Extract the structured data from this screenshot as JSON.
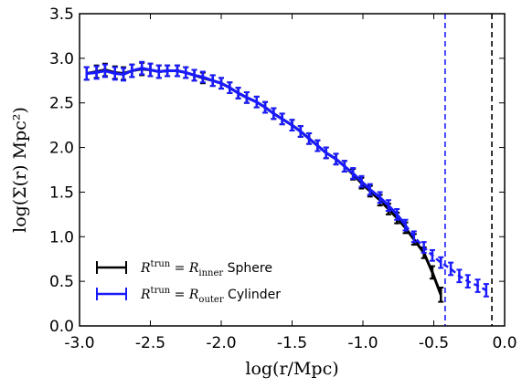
{
  "chart_data": {
    "type": "line",
    "xlabel": "log(r/Mpc)",
    "ylabel": "log(Σ(r) Mpc²)",
    "xlim": [
      -3.0,
      0.0
    ],
    "ylim": [
      0.0,
      3.5
    ],
    "xticks": [
      -3.0,
      -2.5,
      -2.0,
      -1.5,
      -1.0,
      -0.5,
      0.0
    ],
    "xtick_labels": [
      "-3.0",
      "-2.5",
      "-2.0",
      "-1.5",
      "-1.0",
      "-0.5",
      "0.0"
    ],
    "yticks": [
      0.0,
      0.5,
      1.0,
      1.5,
      2.0,
      2.5,
      3.0,
      3.5
    ],
    "ytick_labels": [
      "0.0",
      "0.5",
      "1.0",
      "1.5",
      "2.0",
      "2.5",
      "3.0",
      "3.5"
    ],
    "grid": false,
    "legend_position": "lower-left",
    "vertical_lines": [
      {
        "x": -0.42,
        "color": "#1a1aff",
        "style": "dashed"
      },
      {
        "x": -0.09,
        "color": "#000000",
        "style": "dashed"
      }
    ],
    "series": [
      {
        "legend_math": "R^trun = R_inner",
        "legend_lhs": "R",
        "legend_sup": "trun",
        "legend_eq": " = ",
        "legend_rhs": "R",
        "legend_sub": "inner",
        "legend_tail": " Sphere",
        "color": "#000000",
        "x": [
          -2.95,
          -2.88,
          -2.82,
          -2.75,
          -2.69,
          -2.63,
          -2.56,
          -2.5,
          -2.44,
          -2.38,
          -2.31,
          -2.25,
          -2.19,
          -2.13,
          -2.06,
          -2.0,
          -1.94,
          -1.88,
          -1.82,
          -1.75,
          -1.69,
          -1.63,
          -1.57,
          -1.5,
          -1.44,
          -1.38,
          -1.32,
          -1.26,
          -1.19,
          -1.13,
          -1.07,
          -1.01,
          -0.95,
          -0.88,
          -0.82,
          -0.76,
          -0.7,
          -0.64,
          -0.57,
          -0.51,
          -0.45
        ],
        "y": [
          2.83,
          2.85,
          2.87,
          2.84,
          2.83,
          2.86,
          2.88,
          2.87,
          2.85,
          2.86,
          2.86,
          2.84,
          2.81,
          2.78,
          2.75,
          2.72,
          2.67,
          2.61,
          2.56,
          2.51,
          2.45,
          2.38,
          2.32,
          2.25,
          2.18,
          2.1,
          2.02,
          1.94,
          1.87,
          1.79,
          1.7,
          1.6,
          1.51,
          1.41,
          1.31,
          1.21,
          1.1,
          0.97,
          0.82,
          0.6,
          0.35
        ],
        "yerr": [
          0.07,
          0.07,
          0.07,
          0.07,
          0.07,
          0.07,
          0.07,
          0.07,
          0.07,
          0.06,
          0.06,
          0.06,
          0.06,
          0.06,
          0.06,
          0.06,
          0.06,
          0.06,
          0.06,
          0.06,
          0.06,
          0.06,
          0.06,
          0.06,
          0.06,
          0.06,
          0.06,
          0.06,
          0.06,
          0.06,
          0.06,
          0.06,
          0.06,
          0.06,
          0.06,
          0.06,
          0.06,
          0.06,
          0.06,
          0.07,
          0.08
        ]
      },
      {
        "legend_math": "R^trun = R_outer",
        "legend_lhs": "R",
        "legend_sup": "trun",
        "legend_eq": " = ",
        "legend_rhs": "R",
        "legend_sub": "outer",
        "legend_tail": " Cylinder",
        "color": "#1a1aff",
        "x": [
          -2.95,
          -2.88,
          -2.82,
          -2.75,
          -2.69,
          -2.63,
          -2.56,
          -2.5,
          -2.44,
          -2.38,
          -2.31,
          -2.25,
          -2.19,
          -2.13,
          -2.06,
          -2.0,
          -1.94,
          -1.88,
          -1.82,
          -1.75,
          -1.69,
          -1.63,
          -1.57,
          -1.5,
          -1.44,
          -1.38,
          -1.32,
          -1.26,
          -1.19,
          -1.13,
          -1.07,
          -1.01,
          -0.95,
          -0.88,
          -0.82,
          -0.76,
          -0.7,
          -0.64,
          -0.57,
          -0.51,
          -0.45,
          -0.38,
          -0.32,
          -0.26,
          -0.19,
          -0.13
        ],
        "y": [
          2.83,
          2.84,
          2.86,
          2.83,
          2.82,
          2.86,
          2.89,
          2.87,
          2.85,
          2.86,
          2.86,
          2.84,
          2.81,
          2.79,
          2.75,
          2.72,
          2.67,
          2.61,
          2.56,
          2.51,
          2.45,
          2.38,
          2.32,
          2.25,
          2.18,
          2.1,
          2.02,
          1.94,
          1.87,
          1.79,
          1.71,
          1.62,
          1.53,
          1.44,
          1.35,
          1.25,
          1.13,
          1.0,
          0.88,
          0.79,
          0.71,
          0.64,
          0.56,
          0.5,
          0.45,
          0.4
        ],
        "yerr": [
          0.07,
          0.07,
          0.07,
          0.07,
          0.07,
          0.07,
          0.07,
          0.07,
          0.07,
          0.06,
          0.06,
          0.06,
          0.06,
          0.06,
          0.06,
          0.06,
          0.06,
          0.06,
          0.06,
          0.06,
          0.06,
          0.06,
          0.06,
          0.06,
          0.06,
          0.06,
          0.06,
          0.06,
          0.06,
          0.06,
          0.06,
          0.06,
          0.06,
          0.06,
          0.06,
          0.06,
          0.06,
          0.06,
          0.06,
          0.06,
          0.06,
          0.07,
          0.07,
          0.07,
          0.07,
          0.07
        ],
        "solid_until_x": -0.7
      }
    ]
  }
}
